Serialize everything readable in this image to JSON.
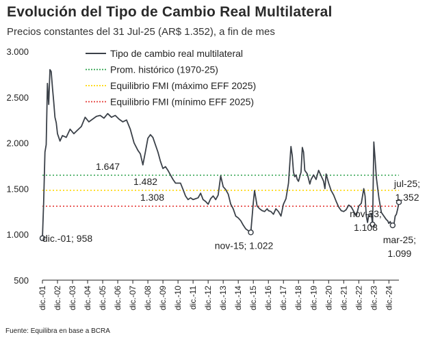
{
  "chart_data": {
    "type": "line",
    "title": "Evolución del Tipo de Cambio Real Multilateral",
    "subtitle": "Precios constantes  del 31 Jul-25 (AR$ 1.352), a fin de mes",
    "source": "Fuente: Equilibra en base a BCRA",
    "ylim": [
      500,
      3000
    ],
    "yticks": [
      {
        "value": 500,
        "label": "500"
      },
      {
        "value": 1000,
        "label": "1.000"
      },
      {
        "value": 1500,
        "label": "1.500"
      },
      {
        "value": 2000,
        "label": "2.000"
      },
      {
        "value": 2500,
        "label": "2.500"
      },
      {
        "value": 3000,
        "label": "3.000"
      }
    ],
    "xlim": [
      2001.917,
      2025.583
    ],
    "xticks": [
      {
        "value": 2001.917,
        "label": "dic.-01"
      },
      {
        "value": 2002.917,
        "label": "dic.-02"
      },
      {
        "value": 2003.917,
        "label": "dic.-03"
      },
      {
        "value": 2004.917,
        "label": "dic.-04"
      },
      {
        "value": 2005.917,
        "label": "dic.-05"
      },
      {
        "value": 2006.917,
        "label": "dic.-06"
      },
      {
        "value": 2007.917,
        "label": "dic.-07"
      },
      {
        "value": 2008.917,
        "label": "dic.-08"
      },
      {
        "value": 2009.917,
        "label": "dic.-09"
      },
      {
        "value": 2010.917,
        "label": "dic.-10"
      },
      {
        "value": 2011.917,
        "label": "dic.-11"
      },
      {
        "value": 2012.917,
        "label": "dic.-12"
      },
      {
        "value": 2013.917,
        "label": "dic.-13"
      },
      {
        "value": 2014.917,
        "label": "dic.-14"
      },
      {
        "value": 2015.917,
        "label": "dic.-15"
      },
      {
        "value": 2016.917,
        "label": "dic.-16"
      },
      {
        "value": 2017.917,
        "label": "dic.-17"
      },
      {
        "value": 2018.917,
        "label": "dic.-18"
      },
      {
        "value": 2019.917,
        "label": "dic.-19"
      },
      {
        "value": 2020.917,
        "label": "dic.-20"
      },
      {
        "value": 2021.917,
        "label": "dic.-21"
      },
      {
        "value": 2022.917,
        "label": "dic.-22"
      },
      {
        "value": 2023.917,
        "label": "dic.-23"
      },
      {
        "value": 2024.917,
        "label": "dic.-24"
      }
    ],
    "series": [
      {
        "name": "Tipo de cambio real multilateral",
        "color": "#3a4048",
        "points": [
          [
            2001.917,
            958
          ],
          [
            2002.0,
            1350
          ],
          [
            2002.083,
            1900
          ],
          [
            2002.167,
            1980
          ],
          [
            2002.25,
            2650
          ],
          [
            2002.333,
            2420
          ],
          [
            2002.417,
            2800
          ],
          [
            2002.5,
            2780
          ],
          [
            2002.583,
            2600
          ],
          [
            2002.667,
            2450
          ],
          [
            2002.75,
            2280
          ],
          [
            2002.833,
            2220
          ],
          [
            2002.917,
            2100
          ],
          [
            2003.083,
            2020
          ],
          [
            2003.25,
            2080
          ],
          [
            2003.5,
            2060
          ],
          [
            2003.75,
            2150
          ],
          [
            2004.0,
            2100
          ],
          [
            2004.25,
            2140
          ],
          [
            2004.5,
            2180
          ],
          [
            2004.75,
            2280
          ],
          [
            2005.0,
            2230
          ],
          [
            2005.25,
            2260
          ],
          [
            2005.5,
            2290
          ],
          [
            2005.75,
            2300
          ],
          [
            2006.0,
            2270
          ],
          [
            2006.25,
            2320
          ],
          [
            2006.5,
            2280
          ],
          [
            2006.75,
            2300
          ],
          [
            2007.0,
            2260
          ],
          [
            2007.25,
            2230
          ],
          [
            2007.5,
            2250
          ],
          [
            2007.75,
            2150
          ],
          [
            2008.0,
            2000
          ],
          [
            2008.25,
            1920
          ],
          [
            2008.417,
            1880
          ],
          [
            2008.583,
            1760
          ],
          [
            2008.75,
            1900
          ],
          [
            2008.917,
            2050
          ],
          [
            2009.083,
            2090
          ],
          [
            2009.25,
            2060
          ],
          [
            2009.417,
            1980
          ],
          [
            2009.583,
            1900
          ],
          [
            2009.75,
            1800
          ],
          [
            2009.917,
            1720
          ],
          [
            2010.083,
            1740
          ],
          [
            2010.25,
            1700
          ],
          [
            2010.417,
            1650
          ],
          [
            2010.583,
            1600
          ],
          [
            2010.75,
            1560
          ],
          [
            2010.917,
            1560
          ],
          [
            2011.083,
            1560
          ],
          [
            2011.25,
            1490
          ],
          [
            2011.417,
            1420
          ],
          [
            2011.583,
            1380
          ],
          [
            2011.75,
            1400
          ],
          [
            2011.917,
            1380
          ],
          [
            2012.083,
            1390
          ],
          [
            2012.25,
            1400
          ],
          [
            2012.417,
            1450
          ],
          [
            2012.583,
            1380
          ],
          [
            2012.75,
            1360
          ],
          [
            2012.917,
            1330
          ],
          [
            2013.083,
            1390
          ],
          [
            2013.25,
            1420
          ],
          [
            2013.417,
            1380
          ],
          [
            2013.583,
            1430
          ],
          [
            2013.75,
            1640
          ],
          [
            2013.917,
            1520
          ],
          [
            2014.083,
            1490
          ],
          [
            2014.25,
            1440
          ],
          [
            2014.417,
            1330
          ],
          [
            2014.583,
            1280
          ],
          [
            2014.75,
            1200
          ],
          [
            2014.917,
            1180
          ],
          [
            2015.083,
            1150
          ],
          [
            2015.25,
            1100
          ],
          [
            2015.417,
            1060
          ],
          [
            2015.583,
            1040
          ],
          [
            2015.75,
            1022
          ],
          [
            2015.917,
            1350
          ],
          [
            2016.0,
            1480
          ],
          [
            2016.167,
            1310
          ],
          [
            2016.333,
            1280
          ],
          [
            2016.5,
            1260
          ],
          [
            2016.667,
            1250
          ],
          [
            2016.833,
            1280
          ],
          [
            2016.917,
            1260
          ],
          [
            2017.083,
            1250
          ],
          [
            2017.25,
            1220
          ],
          [
            2017.417,
            1280
          ],
          [
            2017.583,
            1250
          ],
          [
            2017.75,
            1200
          ],
          [
            2017.917,
            1330
          ],
          [
            2018.083,
            1390
          ],
          [
            2018.25,
            1560
          ],
          [
            2018.417,
            1960
          ],
          [
            2018.5,
            1860
          ],
          [
            2018.583,
            1680
          ],
          [
            2018.667,
            1630
          ],
          [
            2018.75,
            1650
          ],
          [
            2018.833,
            1600
          ],
          [
            2018.917,
            1580
          ],
          [
            2019.083,
            1680
          ],
          [
            2019.167,
            1950
          ],
          [
            2019.25,
            1900
          ],
          [
            2019.333,
            1700
          ],
          [
            2019.5,
            1660
          ],
          [
            2019.667,
            1550
          ],
          [
            2019.75,
            1600
          ],
          [
            2019.917,
            1650
          ],
          [
            2020.083,
            1600
          ],
          [
            2020.25,
            1700
          ],
          [
            2020.417,
            1640
          ],
          [
            2020.583,
            1580
          ],
          [
            2020.667,
            1500
          ],
          [
            2020.75,
            1660
          ],
          [
            2020.917,
            1560
          ],
          [
            2021.083,
            1480
          ],
          [
            2021.25,
            1430
          ],
          [
            2021.417,
            1360
          ],
          [
            2021.583,
            1300
          ],
          [
            2021.75,
            1260
          ],
          [
            2021.917,
            1250
          ],
          [
            2022.083,
            1270
          ],
          [
            2022.25,
            1320
          ],
          [
            2022.417,
            1300
          ],
          [
            2022.583,
            1250
          ],
          [
            2022.75,
            1200
          ],
          [
            2022.917,
            1310
          ],
          [
            2023.083,
            1340
          ],
          [
            2023.25,
            1500
          ],
          [
            2023.333,
            1420
          ],
          [
            2023.417,
            1200
          ],
          [
            2023.5,
            1130
          ],
          [
            2023.583,
            1220
          ],
          [
            2023.75,
            1230
          ],
          [
            2023.833,
            1108
          ],
          [
            2023.917,
            2010
          ],
          [
            2024.0,
            1820
          ],
          [
            2024.083,
            1620
          ],
          [
            2024.25,
            1400
          ],
          [
            2024.417,
            1240
          ],
          [
            2024.583,
            1200
          ],
          [
            2024.75,
            1160
          ],
          [
            2024.833,
            1150
          ],
          [
            2024.917,
            1120
          ],
          [
            2025.0,
            1140
          ],
          [
            2025.083,
            1110
          ],
          [
            2025.167,
            1099
          ],
          [
            2025.25,
            1110
          ],
          [
            2025.333,
            1200
          ],
          [
            2025.417,
            1220
          ],
          [
            2025.5,
            1280
          ],
          [
            2025.583,
            1352
          ]
        ]
      }
    ],
    "reference_lines": [
      {
        "name": "Prom. histórico (1970-25)",
        "value": 1647,
        "label": "1.647",
        "color": "#2aa14a"
      },
      {
        "name": "Equilibrio FMI (máximo EFF 2025)",
        "value": 1482,
        "label": "1.482",
        "color": "#ffd600"
      },
      {
        "name": "Equilibrio FMI (mínimo EFF 2025)",
        "value": 1308,
        "label": "1.308",
        "color": "#e53935"
      }
    ],
    "annotations": [
      {
        "x": 2001.917,
        "y": 958,
        "lines": [
          "dic.-01; 958"
        ]
      },
      {
        "x": 2015.75,
        "y": 1022,
        "lines": [
          "nov-15; 1.022"
        ]
      },
      {
        "x": 2023.833,
        "y": 1108,
        "lines": [
          "nov-23;",
          "1.108"
        ]
      },
      {
        "x": 2025.167,
        "y": 1099,
        "lines": [
          "mar-25;",
          "1.099"
        ]
      },
      {
        "x": 2025.583,
        "y": 1352,
        "lines": [
          "jul-25;",
          "1.352"
        ]
      }
    ],
    "legend_position": "top-center"
  }
}
